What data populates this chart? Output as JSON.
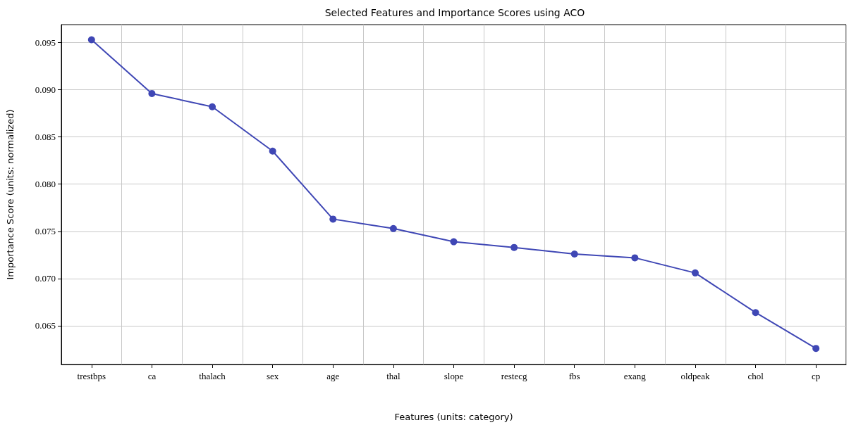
{
  "chart_data": {
    "type": "line",
    "title": "Selected Features and Importance Scores using ACO",
    "xlabel": "Features (units: category)",
    "ylabel": "Importance Score (units: normalized)",
    "categories": [
      "trestbps",
      "ca",
      "thalach",
      "sex",
      "age",
      "thal",
      "slope",
      "restecg",
      "fbs",
      "exang",
      "oldpeak",
      "chol",
      "cp"
    ],
    "series": [
      {
        "color": "#3f47b5",
        "values": [
          0.0953,
          0.0896,
          0.0882,
          0.0835,
          0.0763,
          0.0753,
          0.0739,
          0.0733,
          0.0726,
          0.0722,
          0.0706,
          0.0664,
          0.0626
        ]
      }
    ],
    "ylim": [
      0.0609,
      0.0969
    ],
    "yticks": [
      0.065,
      {
        "value": 0.07,
        "label": "0.070"
      },
      0.075,
      {
        "value": 0.08,
        "label": "0.080"
      },
      0.085,
      {
        "value": 0.09,
        "label": "0.090"
      },
      0.095
    ],
    "grid": true,
    "marker": "circle",
    "line_style": "solid"
  }
}
